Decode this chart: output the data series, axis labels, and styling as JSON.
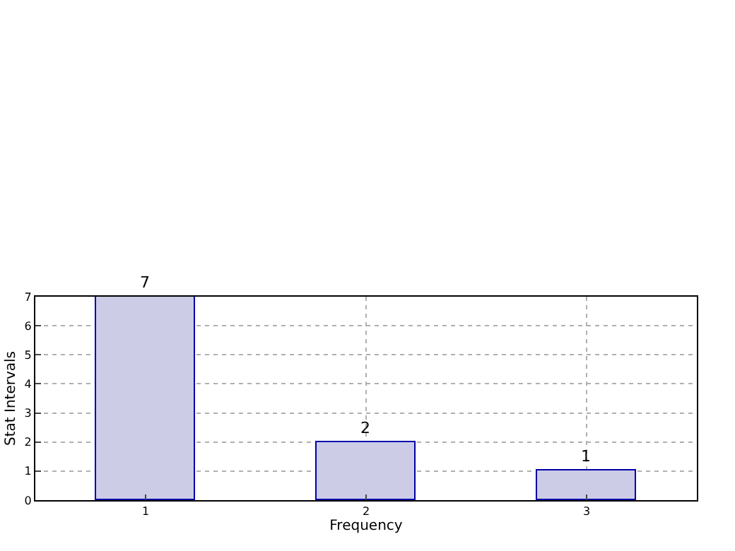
{
  "chart_data": {
    "type": "bar",
    "xlabel": "Frequency",
    "ylabel": "Stat Intervals",
    "x": [
      1,
      2,
      3
    ],
    "values": [
      7,
      2,
      1
    ],
    "color": "#ccccE6",
    "xlim": [
      0.5,
      3.5
    ],
    "xticks": [
      1,
      2,
      3
    ],
    "ylim": [
      0,
      7
    ],
    "yticks": [
      0,
      1,
      2,
      3,
      4,
      5,
      6,
      7
    ],
    "grid": true,
    "data_labels": true
  }
}
